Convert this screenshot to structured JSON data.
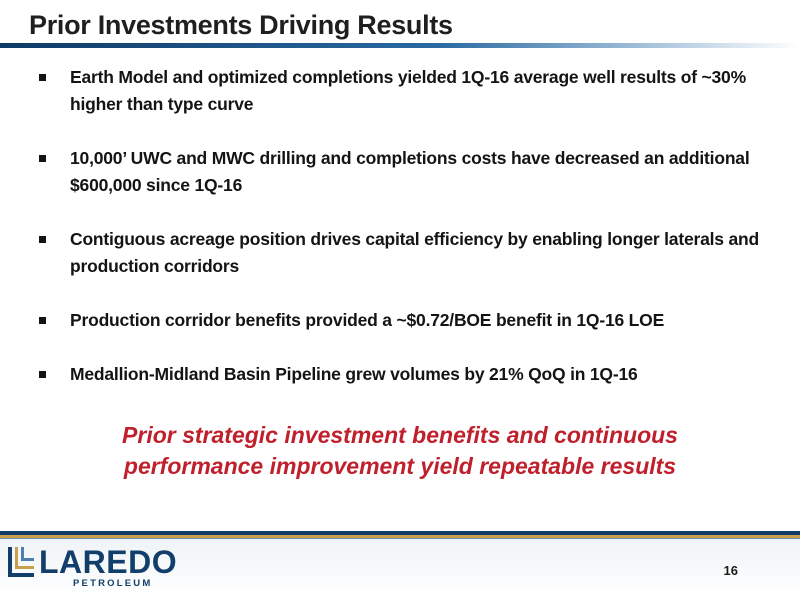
{
  "slide": {
    "title": "Prior Investments Driving Results",
    "bullets": [
      {
        "text": "Earth Model and optimized completions yielded 1Q-16 average well results of ~30% higher than type curve"
      },
      {
        "text": "10,000’ UWC and MWC drilling and completions costs have decreased an additional $600,000 since 1Q-16"
      },
      {
        "text": "Contiguous acreage position drives capital efficiency by enabling longer laterals and production corridors"
      },
      {
        "text": "Production corridor benefits provided a ~$0.72/BOE benefit in 1Q-16 LOE"
      },
      {
        "text": "Medallion-Midland Basin Pipeline grew volumes by 21% QoQ in 1Q-16"
      }
    ],
    "callout_line1": "Prior strategic investment benefits and continuous",
    "callout_line2": "performance improvement yield repeatable results"
  },
  "footer": {
    "logo_word": "LAREDO",
    "logo_sub": "PETROLEUM",
    "page_number": "16"
  },
  "colors": {
    "accent_red": "#c0202b",
    "brand_navy": "#123e6b",
    "brand_gold": "#c8a04a"
  }
}
